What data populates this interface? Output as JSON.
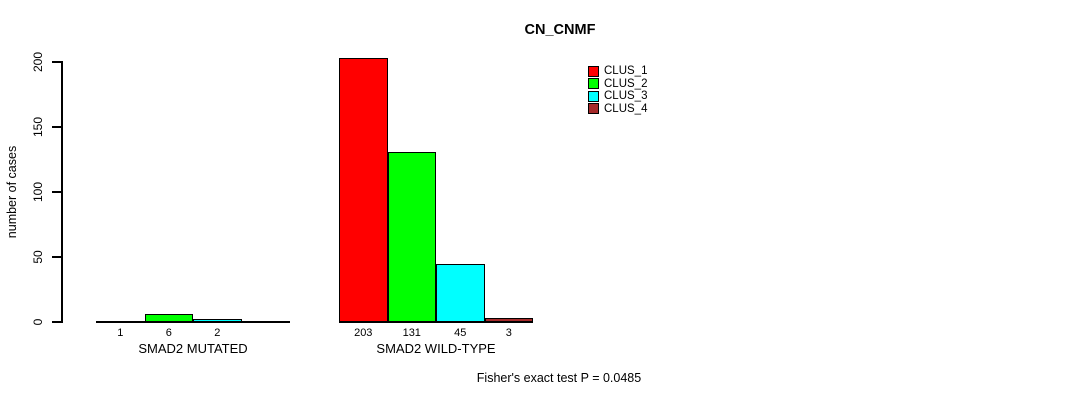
{
  "chart_data": {
    "type": "bar",
    "title": "CN_CNMF",
    "ylabel": "number of cases",
    "xlabel": "",
    "ylim": [
      0,
      200
    ],
    "yticks": [
      0,
      50,
      100,
      150,
      200
    ],
    "grid": false,
    "legend_position": "top-right",
    "categories": [
      "SMAD2 MUTATED",
      "SMAD2 WILD-TYPE"
    ],
    "series": [
      {
        "name": "CLUS_1",
        "color": "#ff0000",
        "values": [
          1,
          203
        ]
      },
      {
        "name": "CLUS_2",
        "color": "#00ff00",
        "values": [
          6,
          131
        ]
      },
      {
        "name": "CLUS_3",
        "color": "#00ffff",
        "values": [
          2,
          45
        ]
      },
      {
        "name": "CLUS_4",
        "color": "#a52a2a",
        "values": [
          0,
          3
        ]
      }
    ],
    "bar_value_labels": [
      [
        "1",
        "6",
        "2",
        ""
      ],
      [
        "203",
        "131",
        "45",
        "3"
      ]
    ],
    "footnote": "Fisher's exact test P = 0.0485"
  }
}
